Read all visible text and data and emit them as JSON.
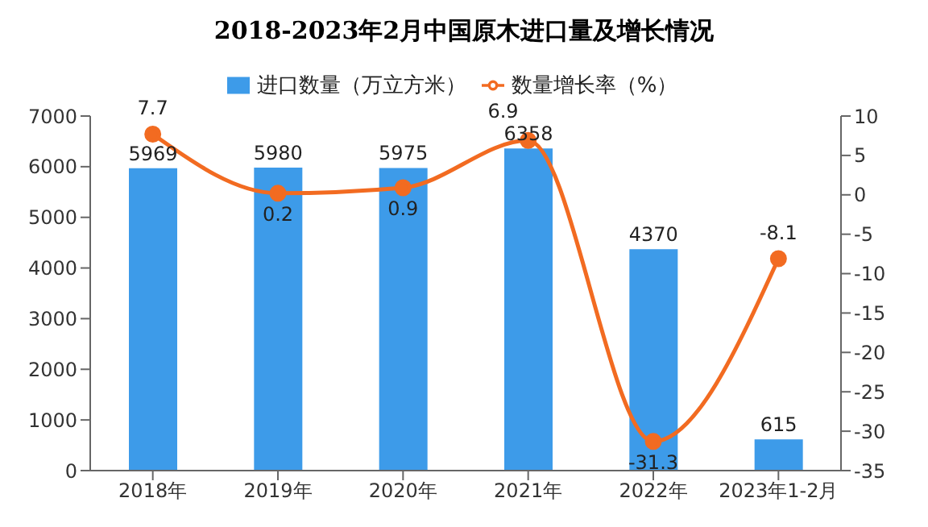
{
  "chart_data": {
    "type": "bar",
    "title": "2018-2023年2月中国原木进口量及增长情况",
    "categories": [
      "2018年",
      "2019年",
      "2020年",
      "2021年",
      "2022年",
      "2023年1-2月"
    ],
    "series": [
      {
        "name": "进口数量（万立方米）",
        "color": "#3d9be9",
        "values": [
          5969,
          5980,
          5975,
          6358,
          4370,
          615
        ]
      },
      {
        "name": "数量增长率（%）",
        "type": "line",
        "axis": "y2",
        "color": "#f26b21",
        "values": [
          7.7,
          0.2,
          0.9,
          6.9,
          -31.3,
          -8.1
        ]
      }
    ],
    "ylim": [
      0,
      7000
    ],
    "yticks": [
      0,
      1000,
      2000,
      3000,
      4000,
      5000,
      6000,
      7000
    ],
    "y2lim": [
      -35,
      10
    ],
    "y2ticks": [
      -35,
      -30,
      -25,
      -20,
      -15,
      -10,
      -5,
      0,
      5,
      10
    ],
    "data_labels": true,
    "legend": "top",
    "marker": "circle",
    "grid": false
  }
}
